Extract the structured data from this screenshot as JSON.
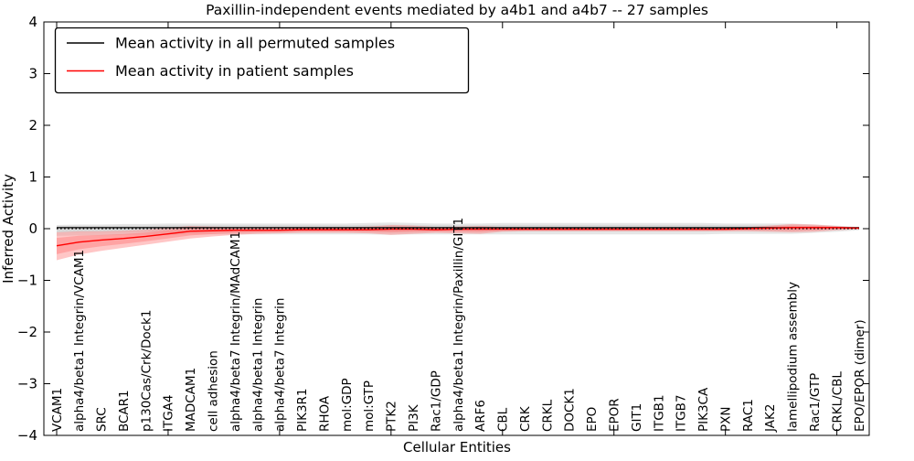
{
  "figure": {
    "background": "#ffffff"
  },
  "chart_data": {
    "type": "line",
    "title": "Paxillin-independent events mediated by a4b1 and a4b7 -- 27 samples",
    "xlabel": "Cellular Entities",
    "ylabel": "Inferred Activity",
    "ylim": [
      -4,
      4
    ],
    "yticks": [
      -4,
      -3,
      -2,
      -1,
      0,
      1,
      2,
      3,
      4
    ],
    "x_tick_step": 5,
    "grid": false,
    "zero_line": {
      "value": 0,
      "style": "dotted",
      "color": "#000000"
    },
    "legend": {
      "position": "upper left",
      "entries": [
        {
          "label": "Mean activity in all permuted samples",
          "color": "#000000"
        },
        {
          "label": "Mean activity in patient samples",
          "color": "#ff0000"
        }
      ]
    },
    "categories": [
      "VCAM1",
      "alpha4/beta1 Integrin/VCAM1",
      "SRC",
      "BCAR1",
      "p130Cas/Crk/Dock1",
      "ITGA4",
      "MADCAM1",
      "cell adhesion",
      "alpha4/beta7 Integrin/MAdCAM1",
      "alpha4/beta1 Integrin",
      "alpha4/beta7 Integrin",
      "PIK3R1",
      "RHOA",
      "mol:GDP",
      "mol:GTP",
      "PTK2",
      "PI3K",
      "Rac1/GDP",
      "alpha4/beta1 Integrin/Paxillin/GIT1",
      "ARF6",
      "CBL",
      "CRK",
      "CRKL",
      "DOCK1",
      "EPO",
      "EPOR",
      "GIT1",
      "ITGB1",
      "ITGB7",
      "PIK3CA",
      "PXN",
      "RAC1",
      "JAK2",
      "lamellipodium assembly",
      "Rac1/GTP",
      "CRKL/CBL",
      "EPO/EPOR (dimer)"
    ],
    "series": [
      {
        "name": "Mean activity in all permuted samples",
        "color": "#000000",
        "band_color": "#c8c8c8",
        "values": [
          0.02,
          0.02,
          0.02,
          0.02,
          0.02,
          0.02,
          0.02,
          0.02,
          0.02,
          0.02,
          0.02,
          0.02,
          0.02,
          0.02,
          0.02,
          0.02,
          0.02,
          0.02,
          0.02,
          0.02,
          0.02,
          0.02,
          0.02,
          0.02,
          0.02,
          0.02,
          0.02,
          0.02,
          0.02,
          0.02,
          0.02,
          0.02,
          0.02,
          0.02,
          0.02,
          0.02,
          0.02
        ],
        "band_upper": [
          0.07,
          0.08,
          0.08,
          0.09,
          0.09,
          0.1,
          0.1,
          0.1,
          0.1,
          0.1,
          0.1,
          0.1,
          0.1,
          0.1,
          0.11,
          0.12,
          0.11,
          0.1,
          0.1,
          0.1,
          0.11,
          0.11,
          0.11,
          0.11,
          0.11,
          0.11,
          0.11,
          0.11,
          0.11,
          0.11,
          0.1,
          0.1,
          0.1,
          0.1,
          0.08,
          0.06,
          0.03
        ],
        "band_lower": [
          -0.14,
          -0.13,
          -0.13,
          -0.12,
          -0.12,
          -0.12,
          -0.11,
          -0.11,
          -0.11,
          -0.11,
          -0.11,
          -0.11,
          -0.11,
          -0.11,
          -0.11,
          -0.12,
          -0.11,
          -0.11,
          -0.11,
          -0.11,
          -0.11,
          -0.11,
          -0.11,
          -0.11,
          -0.11,
          -0.11,
          -0.11,
          -0.11,
          -0.11,
          -0.11,
          -0.1,
          -0.1,
          -0.1,
          -0.1,
          -0.08,
          -0.06,
          -0.03
        ]
      },
      {
        "name": "Mean activity in patient samples",
        "color": "#ff0000",
        "band_color": "#ff8080",
        "values": [
          -0.33,
          -0.26,
          -0.22,
          -0.19,
          -0.15,
          -0.1,
          -0.05,
          -0.04,
          -0.03,
          -0.03,
          -0.03,
          -0.02,
          -0.02,
          -0.02,
          -0.02,
          -0.01,
          -0.01,
          -0.02,
          -0.01,
          -0.01,
          -0.01,
          -0.01,
          -0.01,
          -0.01,
          -0.01,
          -0.01,
          -0.01,
          -0.01,
          -0.01,
          -0.01,
          -0.01,
          0.0,
          0.01,
          0.02,
          0.02,
          0.02,
          0.01
        ],
        "band_upper": [
          -0.07,
          -0.05,
          -0.05,
          -0.04,
          -0.02,
          0.02,
          0.05,
          0.04,
          0.03,
          0.03,
          0.03,
          0.03,
          0.03,
          0.03,
          0.04,
          0.07,
          0.06,
          0.03,
          0.04,
          0.05,
          0.03,
          0.02,
          0.02,
          0.02,
          0.02,
          0.02,
          0.02,
          0.02,
          0.02,
          0.02,
          0.02,
          0.03,
          0.06,
          0.09,
          0.08,
          0.05,
          0.02
        ],
        "band_lower": [
          -0.61,
          -0.5,
          -0.43,
          -0.37,
          -0.31,
          -0.25,
          -0.19,
          -0.15,
          -0.12,
          -0.1,
          -0.09,
          -0.08,
          -0.08,
          -0.08,
          -0.09,
          -0.12,
          -0.1,
          -0.08,
          -0.09,
          -0.1,
          -0.06,
          -0.05,
          -0.05,
          -0.05,
          -0.05,
          -0.05,
          -0.05,
          -0.05,
          -0.05,
          -0.05,
          -0.05,
          -0.05,
          -0.06,
          -0.07,
          -0.06,
          -0.03,
          -0.01
        ]
      }
    ]
  }
}
